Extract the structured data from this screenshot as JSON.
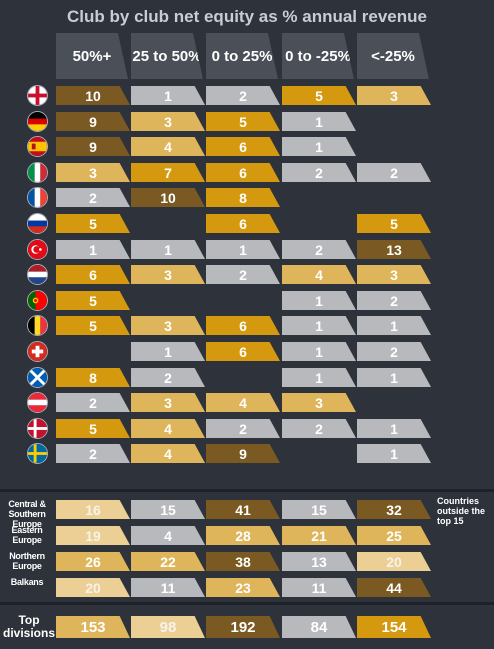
{
  "chart_data": {
    "type": "table",
    "title": "Club by club net equity as % annual revenue",
    "columns": [
      "50%+",
      "25 to 50%",
      "0 to 25%",
      "0 to -25%",
      "<-25%"
    ],
    "countries": [
      {
        "flag": "england-flag-icon",
        "values": [
          10,
          1,
          2,
          5,
          3
        ]
      },
      {
        "flag": "germany-flag-icon",
        "values": [
          9,
          3,
          5,
          1,
          null
        ]
      },
      {
        "flag": "spain-flag-icon",
        "values": [
          9,
          4,
          6,
          1,
          null
        ]
      },
      {
        "flag": "italy-flag-icon",
        "values": [
          3,
          7,
          6,
          2,
          2
        ]
      },
      {
        "flag": "france-flag-icon",
        "values": [
          2,
          10,
          8,
          null,
          null
        ]
      },
      {
        "flag": "russia-flag-icon",
        "values": [
          5,
          null,
          6,
          null,
          5
        ]
      },
      {
        "flag": "turkey-flag-icon",
        "values": [
          1,
          1,
          1,
          2,
          13
        ]
      },
      {
        "flag": "netherlands-flag-icon",
        "values": [
          6,
          3,
          2,
          4,
          3
        ]
      },
      {
        "flag": "portugal-flag-icon",
        "values": [
          5,
          null,
          null,
          1,
          2
        ]
      },
      {
        "flag": "belgium-flag-icon",
        "values": [
          5,
          3,
          6,
          1,
          1
        ]
      },
      {
        "flag": "switzerland-flag-icon",
        "values": [
          null,
          1,
          6,
          1,
          2
        ]
      },
      {
        "flag": "scotland-flag-icon",
        "values": [
          8,
          2,
          null,
          1,
          1
        ]
      },
      {
        "flag": "austria-flag-icon",
        "values": [
          2,
          3,
          4,
          3,
          null
        ]
      },
      {
        "flag": "denmark-flag-icon",
        "values": [
          5,
          4,
          2,
          2,
          1
        ]
      },
      {
        "flag": "sweden-flag-icon",
        "values": [
          2,
          4,
          9,
          null,
          1
        ]
      }
    ],
    "regions": [
      {
        "label": "Central & Southern Europe",
        "values": [
          16,
          15,
          41,
          15,
          32
        ]
      },
      {
        "label": "Eastern Europe",
        "values": [
          19,
          4,
          28,
          21,
          25
        ]
      },
      {
        "label": "Northern Europe",
        "values": [
          26,
          22,
          38,
          13,
          20
        ]
      },
      {
        "label": "Balkans",
        "values": [
          20,
          11,
          23,
          11,
          44
        ]
      }
    ],
    "regions_note": "Countries outside the top 15",
    "total": {
      "label": "Top divisions",
      "values": [
        153,
        98,
        192,
        84,
        154
      ]
    }
  },
  "colors": {
    "background": "#2d323b",
    "header": "#4a4f58",
    "dark_brown": "#7a5a22",
    "gold": "#d4990f",
    "light_gold": "#dfb55c",
    "pale": "#ebcf95",
    "grey": "#b8b9bc"
  }
}
